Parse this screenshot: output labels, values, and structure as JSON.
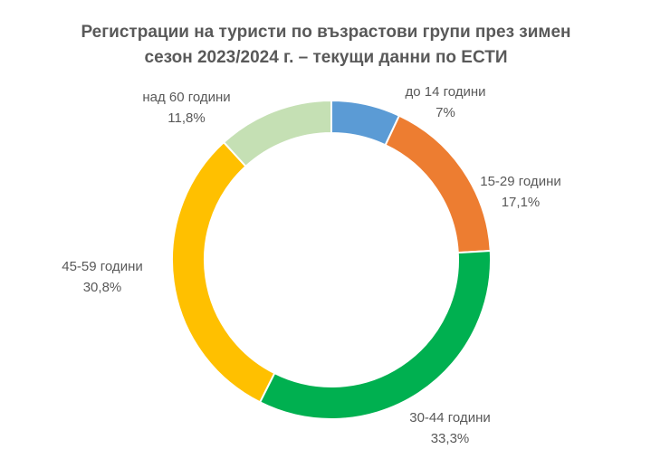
{
  "chart_data": {
    "type": "donut",
    "title": [
      "Регистрации на  туристи по възрастови групи  през зимен",
      "сезон 2023/2024 г.   – текущи данни по ЕСТИ"
    ],
    "categories": [
      "до 14 години",
      "15-29 години",
      "30-44 години",
      "45-59 години",
      "над 60 години"
    ],
    "values": [
      7,
      17.1,
      33.3,
      30.8,
      11.8
    ],
    "value_labels": [
      "7%",
      "17,1%",
      "33,3%",
      "30,8%",
      "11,8%"
    ],
    "colors": [
      "#5b9bd5",
      "#ed7d31",
      "#00b050",
      "#ffc000",
      "#c5e0b4"
    ]
  }
}
